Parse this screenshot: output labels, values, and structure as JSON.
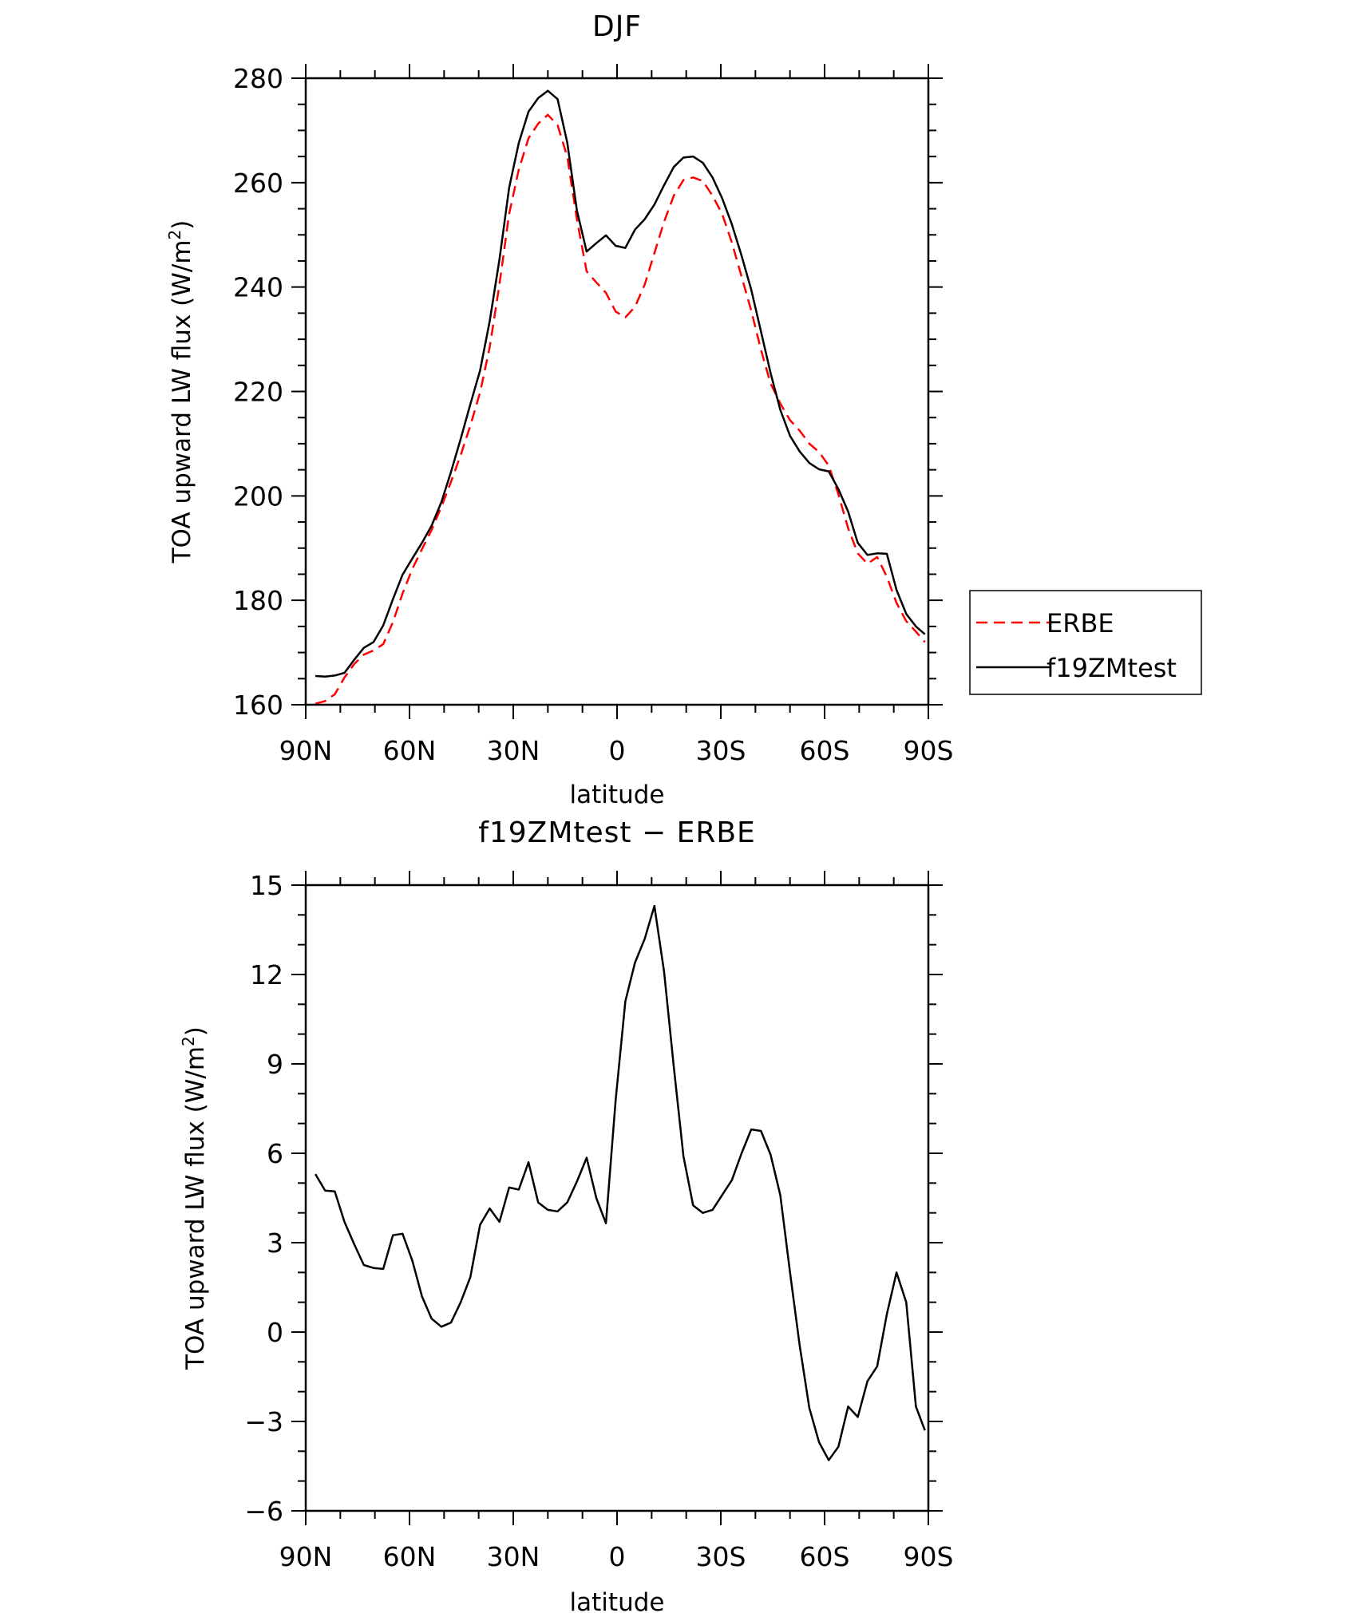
{
  "chart_data": [
    {
      "type": "line",
      "title": "DJF",
      "xlabel": "latitude",
      "ylabel": "TOA upward LW flux (W/m²)",
      "ylabel_main": "TOA upward LW flux (W/m",
      "ylabel_sup": "2",
      "ylabel_close": ")",
      "xlim": [
        90,
        -90
      ],
      "ylim": [
        160,
        280
      ],
      "yticks": [
        160,
        180,
        200,
        220,
        240,
        260,
        280
      ],
      "xticks": [
        90,
        60,
        30,
        0,
        -30,
        -60,
        -90
      ],
      "xtick_labels": [
        "90N",
        "60N",
        "30N",
        "0",
        "30S",
        "60S",
        "90S"
      ],
      "legend_placement": "right",
      "series": [
        {
          "name": "ERBE",
          "color": "#ff0000",
          "dash": "dashed",
          "x": [
            87.2,
            84.4,
            81.6,
            78.8,
            76.0,
            73.2,
            70.4,
            67.6,
            64.8,
            62.0,
            59.2,
            56.4,
            53.6,
            50.8,
            48.0,
            45.2,
            42.4,
            39.6,
            36.8,
            34.0,
            31.2,
            28.4,
            25.6,
            22.8,
            20.0,
            17.2,
            14.4,
            11.6,
            8.8,
            6.0,
            3.2,
            0.4,
            -2.4,
            -5.2,
            -8.0,
            -10.8,
            -13.6,
            -16.4,
            -19.2,
            -22.0,
            -24.8,
            -27.6,
            -30.4,
            -33.2,
            -36.0,
            -38.8,
            -41.6,
            -44.4,
            -47.2,
            -50.0,
            -52.8,
            -55.6,
            -58.4,
            -61.2,
            -64.0,
            -66.8,
            -69.6,
            -72.4,
            -75.2,
            -78.0,
            -80.8,
            -83.6,
            -86.4,
            -89.0
          ],
          "y": [
            160.2,
            160.7,
            162.0,
            165.2,
            167.8,
            169.6,
            170.4,
            171.6,
            175.8,
            181.3,
            186.0,
            189.8,
            193.5,
            197.9,
            202.7,
            207.8,
            213.5,
            219.8,
            228.5,
            240.5,
            254.0,
            262.5,
            268.5,
            271.3,
            273.0,
            271.0,
            265.0,
            253.0,
            243.0,
            240.9,
            238.9,
            235.3,
            234.2,
            236.2,
            240.5,
            246.5,
            252.5,
            257.5,
            260.5,
            261.0,
            260.3,
            257.5,
            254.0,
            248.5,
            242.0,
            235.5,
            228.0,
            221.5,
            217.7,
            214.5,
            212.5,
            210.0,
            208.4,
            205.8,
            200.3,
            193.8,
            189.0,
            187.0,
            188.3,
            184.5,
            179.5,
            176.0,
            174.0,
            172.0
          ],
          "x_plot_max": 87.2,
          "x_plot_min": -89.0
        },
        {
          "name": "f19ZMtest",
          "color": "#000000",
          "dash": "solid",
          "x": [
            87.2,
            84.4,
            81.6,
            78.8,
            76.0,
            73.2,
            70.4,
            67.6,
            64.8,
            62.0,
            59.2,
            56.4,
            53.6,
            50.8,
            48.0,
            45.2,
            42.4,
            39.6,
            36.8,
            34.0,
            31.2,
            28.4,
            25.6,
            22.8,
            20.0,
            17.2,
            14.4,
            11.6,
            8.8,
            6.0,
            3.2,
            0.4,
            -2.4,
            -5.2,
            -8.0,
            -10.8,
            -13.6,
            -16.4,
            -19.2,
            -22.0,
            -24.8,
            -27.6,
            -30.4,
            -33.2,
            -36.0,
            -38.8,
            -41.6,
            -44.4,
            -47.2,
            -50.0,
            -52.8,
            -55.6,
            -58.4,
            -61.2,
            -64.0,
            -66.8,
            -69.6,
            -72.4,
            -75.2,
            -78.0,
            -80.8,
            -83.6,
            -86.4,
            -89.0
          ],
          "y": [
            165.5,
            165.4,
            165.6,
            166.1,
            168.6,
            170.9,
            172.0,
            175.2,
            180.2,
            184.9,
            188.0,
            191.0,
            194.3,
            198.8,
            204.6,
            210.9,
            217.6,
            224.0,
            233.5,
            245.3,
            259.0,
            267.6,
            273.6,
            276.2,
            277.6,
            276.0,
            267.7,
            254.7,
            246.8,
            248.4,
            249.9,
            247.9,
            247.5,
            251.0,
            253.0,
            255.8,
            259.5,
            263.0,
            264.8,
            265.0,
            263.8,
            261.0,
            257.0,
            252.0,
            246.0,
            239.5,
            231.5,
            223.5,
            216.5,
            211.5,
            208.5,
            206.3,
            205.1,
            204.7,
            201.3,
            197.0,
            191.0,
            188.7,
            189.0,
            188.9,
            182.0,
            177.4,
            175.0,
            173.5
          ]
        }
      ]
    },
    {
      "type": "line",
      "title": "f19ZMtest − ERBE",
      "xlabel": "latitude",
      "ylabel": "TOA upward LW flux (W/m²)",
      "ylabel_main": "TOA upward LW flux (W/m",
      "ylabel_sup": "2",
      "ylabel_close": ")",
      "xlim": [
        90,
        -90
      ],
      "ylim": [
        -6,
        15
      ],
      "yticks": [
        -6,
        -3,
        0,
        3,
        6,
        9,
        12,
        15
      ],
      "ytick_labels": [
        "−6",
        "−3",
        "0",
        "3",
        "6",
        "9",
        "12",
        "15"
      ],
      "xticks": [
        90,
        60,
        30,
        0,
        -30,
        -60,
        -90
      ],
      "xtick_labels": [
        "90N",
        "60N",
        "30N",
        "0",
        "30S",
        "60S",
        "90S"
      ],
      "series": [
        {
          "color": "#000000",
          "dash": "solid",
          "x": [
            87.2,
            84.4,
            81.6,
            78.8,
            76.0,
            73.2,
            70.4,
            67.6,
            64.8,
            62.0,
            59.2,
            56.4,
            53.6,
            50.8,
            48.0,
            45.2,
            42.4,
            39.6,
            36.8,
            34.0,
            31.2,
            28.4,
            25.6,
            22.8,
            20.0,
            17.2,
            14.4,
            11.6,
            8.8,
            6.0,
            3.2,
            0.4,
            -2.4,
            -5.2,
            -8.0,
            -10.8,
            -13.6,
            -16.4,
            -19.2,
            -22.0,
            -24.8,
            -27.6,
            -30.4,
            -33.2,
            -36.0,
            -38.8,
            -41.6,
            -44.4,
            -47.2,
            -50.0,
            -52.8,
            -55.6,
            -58.4,
            -61.2,
            -64.0,
            -66.8,
            -69.6,
            -72.4,
            -75.2,
            -78.0,
            -80.8,
            -83.6,
            -86.4,
            -89.0
          ],
          "y": [
            5.3,
            4.75,
            4.72,
            3.7,
            2.95,
            2.25,
            2.15,
            2.12,
            3.25,
            3.3,
            2.4,
            1.2,
            0.45,
            0.18,
            0.32,
            1.0,
            1.85,
            3.6,
            4.15,
            3.7,
            4.85,
            4.78,
            5.7,
            4.35,
            4.1,
            4.05,
            4.35,
            5.05,
            5.85,
            4.5,
            3.65,
            7.8,
            11.1,
            12.4,
            13.2,
            14.3,
            12.1,
            8.9,
            5.9,
            4.25,
            4.0,
            4.1,
            4.6,
            5.1,
            6.0,
            6.8,
            6.75,
            5.95,
            4.6,
            2.0,
            -0.45,
            -2.55,
            -3.7,
            -4.3,
            -3.85,
            -2.5,
            -2.85,
            -1.65,
            -1.15,
            0.6,
            2.0,
            1.0,
            -2.5,
            -3.3
          ],
          "x_plot_min": -88.0
        }
      ]
    }
  ]
}
